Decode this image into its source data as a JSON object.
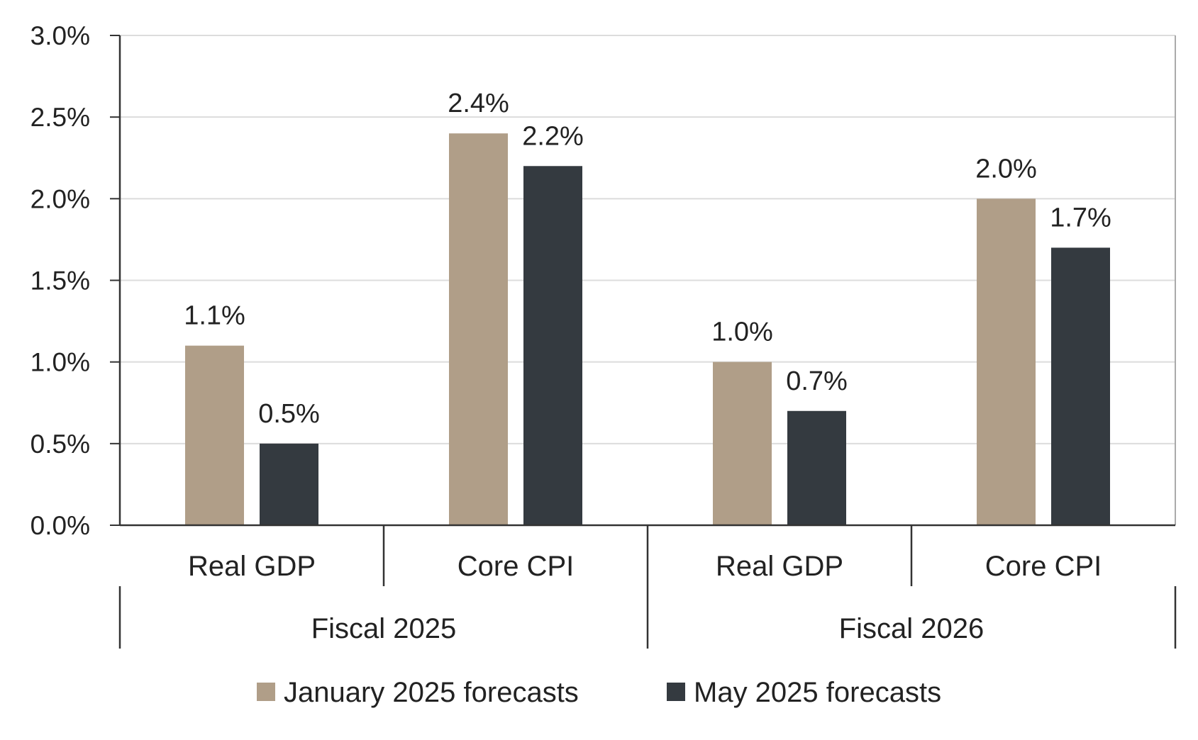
{
  "chart_data": {
    "type": "bar",
    "groups": [
      {
        "label": "Fiscal 2025",
        "categories": [
          "Real GDP",
          "Core CPI"
        ]
      },
      {
        "label": "Fiscal 2026",
        "categories": [
          "Real GDP",
          "Core CPI"
        ]
      }
    ],
    "categories": [
      "Real GDP",
      "Core CPI",
      "Real GDP",
      "Core CPI"
    ],
    "series": [
      {
        "name": "January 2025 forecasts",
        "color": "#b09e88",
        "values": [
          1.1,
          2.4,
          1.0,
          2.0
        ],
        "labels": [
          "1.1%",
          "2.4%",
          "1.0%",
          "2.0%"
        ]
      },
      {
        "name": "May 2025 forecasts",
        "color": "#343a40",
        "values": [
          0.5,
          2.2,
          0.7,
          1.7
        ],
        "labels": [
          "0.5%",
          "2.2%",
          "0.7%",
          "1.7%"
        ]
      }
    ],
    "yticks": [
      0.0,
      0.5,
      1.0,
      1.5,
      2.0,
      2.5,
      3.0
    ],
    "ytick_labels": [
      "0.0%",
      "0.5%",
      "1.0%",
      "1.5%",
      "2.0%",
      "2.5%",
      "3.0%"
    ],
    "ylim": [
      0,
      3.0
    ],
    "grid": true,
    "legend_position": "bottom-center",
    "title": "",
    "xlabel": "",
    "ylabel": ""
  }
}
